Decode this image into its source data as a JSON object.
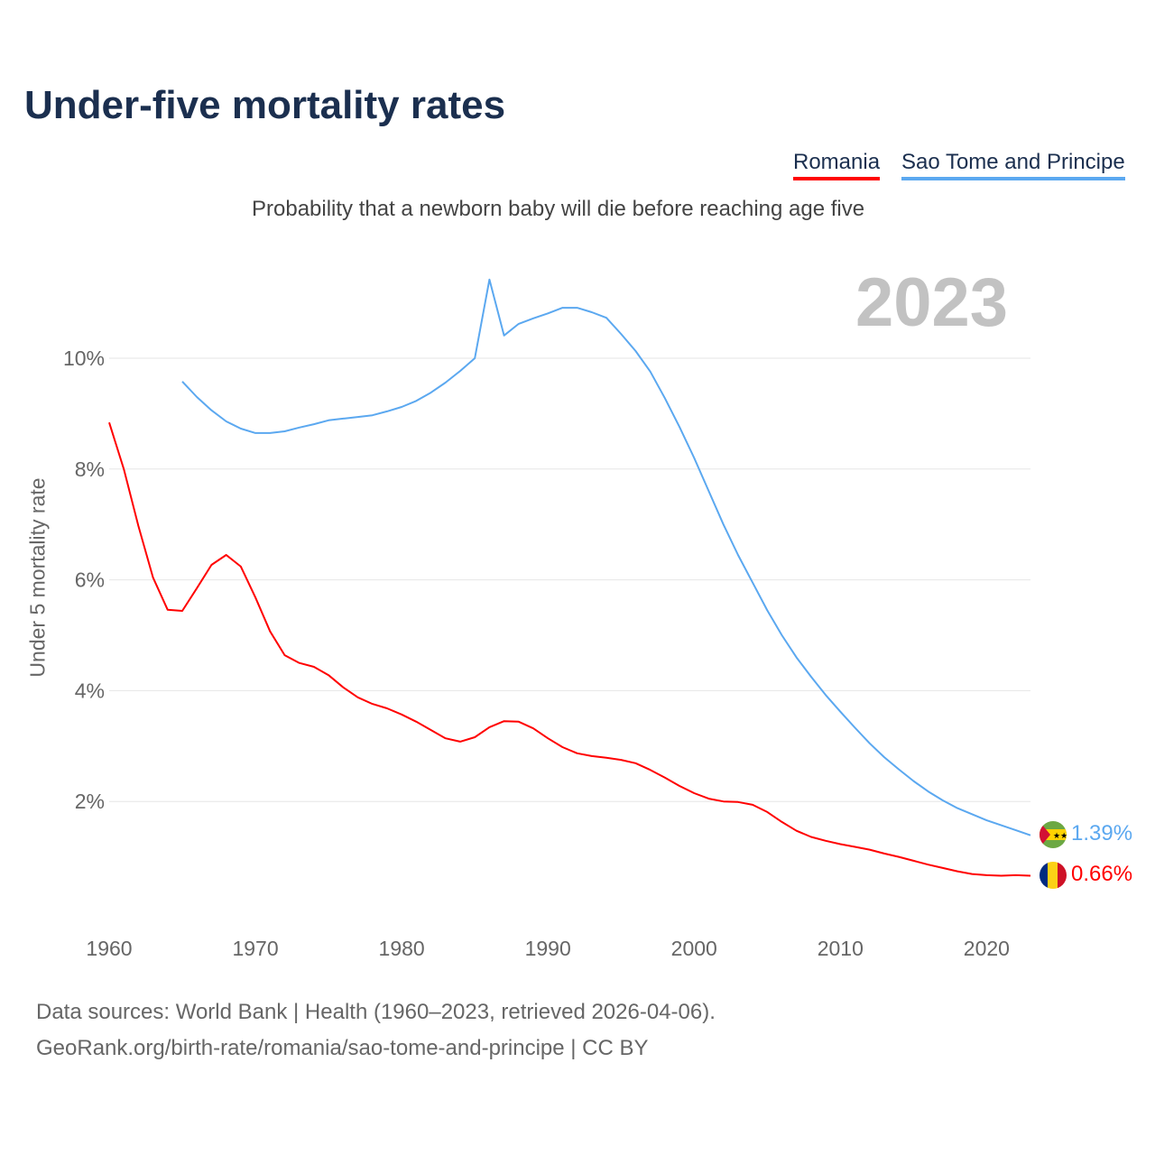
{
  "title": "Under-five mortality rates",
  "subtitle": "Probability that a newborn baby will die before reaching age five",
  "year_label": "2023",
  "legend": [
    {
      "name": "Romania",
      "color": "#ff0000"
    },
    {
      "name": "Sao Tome and Principe",
      "color": "#5ba8f0"
    }
  ],
  "footer": {
    "line1": "Data sources: World Bank | Health (1960–2023, retrieved 2026-04-06).",
    "line2": "GeoRank.org/birth-rate/romania/sao-tome-and-principe | CC BY"
  },
  "chart_data": {
    "type": "line",
    "title": "Under-five mortality rates",
    "xlabel": "",
    "ylabel": "Under 5 mortality rate",
    "xlim": [
      1960,
      2023
    ],
    "ylim": [
      0,
      11.5
    ],
    "x_ticks": [
      "1960",
      "1970",
      "1980",
      "1990",
      "2000",
      "2010",
      "2020"
    ],
    "y_ticks": [
      {
        "value": 2,
        "label": "2%"
      },
      {
        "value": 4,
        "label": "4%"
      },
      {
        "value": 6,
        "label": "6%"
      },
      {
        "value": 8,
        "label": "8%"
      },
      {
        "value": 10,
        "label": "10%"
      }
    ],
    "grid": true,
    "legend_position": "top-right",
    "series": [
      {
        "name": "Romania",
        "color": "#ff0000",
        "start_year": 1960,
        "end_label": "0.66%",
        "values": [
          8.84,
          8.0,
          6.97,
          6.04,
          5.46,
          5.44,
          5.85,
          6.27,
          6.45,
          6.24,
          5.68,
          5.07,
          4.64,
          4.5,
          4.43,
          4.28,
          4.06,
          3.88,
          3.76,
          3.68,
          3.57,
          3.44,
          3.29,
          3.14,
          3.08,
          3.16,
          3.34,
          3.45,
          3.44,
          3.32,
          3.14,
          2.98,
          2.87,
          2.82,
          2.79,
          2.75,
          2.69,
          2.57,
          2.43,
          2.28,
          2.15,
          2.05,
          2.0,
          1.99,
          1.94,
          1.81,
          1.63,
          1.47,
          1.36,
          1.29,
          1.23,
          1.18,
          1.13,
          1.06,
          1.0,
          0.93,
          0.86,
          0.8,
          0.74,
          0.69,
          0.67,
          0.66,
          0.67,
          0.66
        ]
      },
      {
        "name": "Sao Tome and Principe",
        "color": "#5ba8f0",
        "start_year": 1965,
        "end_label": "1.39%",
        "values": [
          9.58,
          9.3,
          9.06,
          8.86,
          8.73,
          8.65,
          8.65,
          8.68,
          8.75,
          8.81,
          8.88,
          8.91,
          8.94,
          8.97,
          9.04,
          9.12,
          9.23,
          9.38,
          9.56,
          9.77,
          10.0,
          11.42,
          10.41,
          10.62,
          10.72,
          10.81,
          10.91,
          10.91,
          10.83,
          10.73,
          10.44,
          10.13,
          9.76,
          9.28,
          8.76,
          8.2,
          7.6,
          7.0,
          6.45,
          5.95,
          5.45,
          5.0,
          4.6,
          4.25,
          3.92,
          3.62,
          3.33,
          3.05,
          2.8,
          2.58,
          2.37,
          2.18,
          2.02,
          1.88,
          1.77,
          1.66,
          1.57,
          1.48,
          1.39
        ]
      }
    ]
  }
}
